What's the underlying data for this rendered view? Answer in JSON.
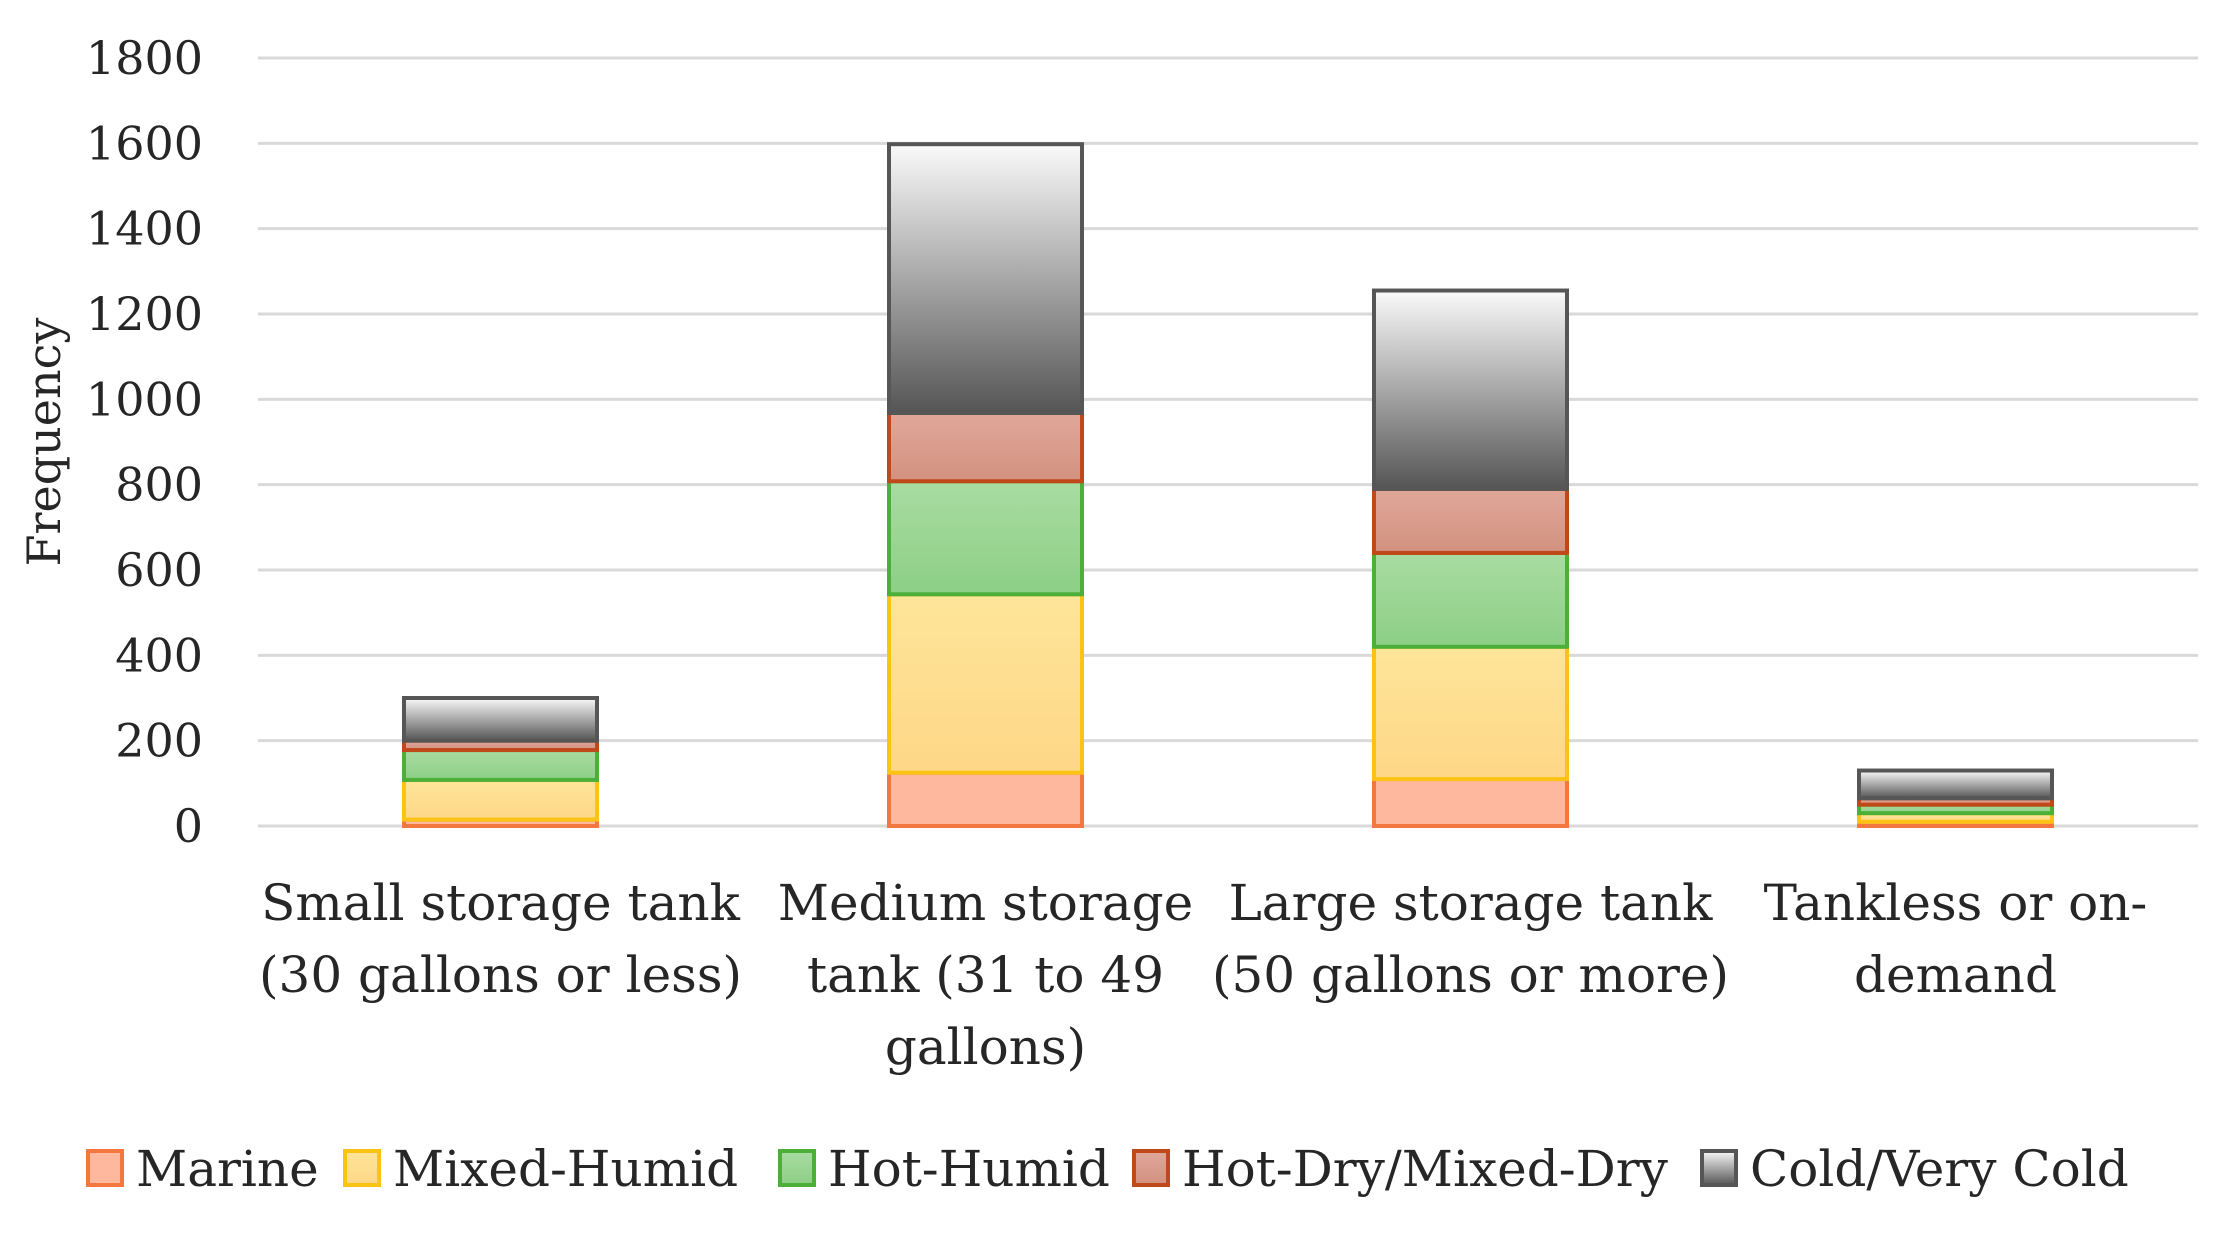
{
  "chart_data": {
    "type": "bar",
    "stacked": true,
    "title": "",
    "xlabel": "",
    "ylabel": "Frequency",
    "ylim": [
      0,
      1800
    ],
    "yticks": [
      0,
      200,
      400,
      600,
      800,
      1000,
      1200,
      1400,
      1600,
      1800
    ],
    "grid": true,
    "legend_position": "bottom",
    "categories": [
      [
        "Small storage tank",
        "(30 gallons or less)"
      ],
      [
        "Medium storage",
        "tank (31 to 49",
        "gallons)"
      ],
      [
        "Large storage tank",
        "(50 gallons or more)"
      ],
      [
        "Tankless or on-",
        "demand"
      ]
    ],
    "series": [
      {
        "name": "Marine",
        "values": [
          15,
          125,
          110,
          10
        ],
        "fill_top": "#fdb89d",
        "fill_bottom": "#fdb89d",
        "stroke": "#f4773f"
      },
      {
        "name": "Mixed-Humid",
        "values": [
          93,
          418,
          310,
          20
        ],
        "fill_top": "#fee599",
        "fill_bottom": "#fed787",
        "stroke": "#fcc314"
      },
      {
        "name": "Hot-Humid",
        "values": [
          70,
          265,
          220,
          20
        ],
        "fill_top": "#a9dca2",
        "fill_bottom": "#8ccf85",
        "stroke": "#4caf38"
      },
      {
        "name": "Hot-Dry/Mixed-Dry",
        "values": [
          22,
          160,
          150,
          15
        ],
        "fill_top": "#e0a89a",
        "fill_bottom": "#d3917f",
        "stroke": "#c0491a"
      },
      {
        "name": "Cold/Very Cold",
        "values": [
          100,
          630,
          465,
          65
        ],
        "fill_top": "#fafafa",
        "fill_bottom": "#555555",
        "stroke": "#565656"
      }
    ]
  }
}
